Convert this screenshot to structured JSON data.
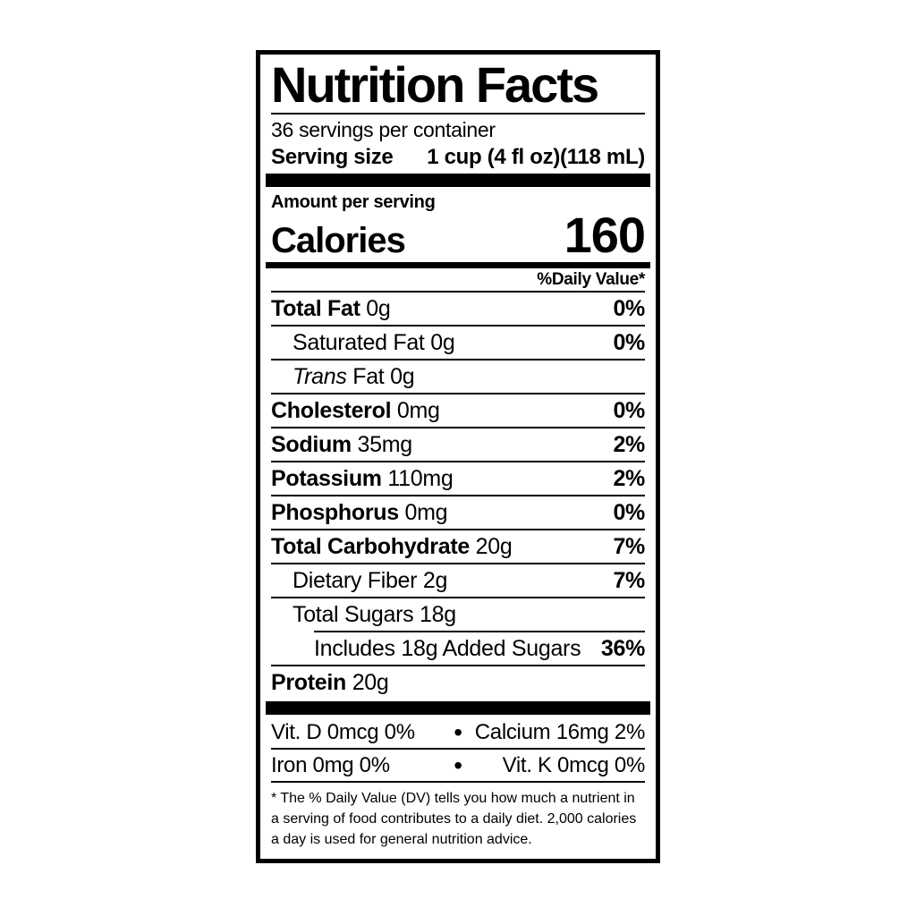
{
  "label": {
    "title": "Nutrition Facts",
    "servings_per_container": "36 servings per container",
    "serving_size": {
      "label": "Serving size",
      "value": "1 cup (4 fl oz)(118 mL)"
    },
    "amount_per_serving": "Amount per serving",
    "calories": {
      "label": "Calories",
      "value": "160"
    },
    "daily_value_header": "%Daily Value*",
    "nutrients": [
      {
        "bold": "Total Fat",
        "text": "0g",
        "dv": "0%",
        "indent": 0
      },
      {
        "text": "Saturated Fat 0g",
        "dv": "0%",
        "indent": 1
      },
      {
        "italic": "Trans",
        "text": "Fat 0g",
        "dv": "",
        "indent": 1
      },
      {
        "bold": "Cholesterol",
        "text": "0mg",
        "dv": "0%",
        "indent": 0
      },
      {
        "bold": "Sodium",
        "text": "35mg",
        "dv": "2%",
        "indent": 0
      },
      {
        "bold": "Potassium",
        "text": "110mg",
        "dv": "2%",
        "indent": 0
      },
      {
        "bold": "Phosphorus",
        "text": "0mg",
        "dv": "0%",
        "indent": 0
      },
      {
        "bold": "Total Carbohydrate",
        "text": "20g",
        "dv": "7%",
        "indent": 0
      },
      {
        "text": "Dietary Fiber 2g",
        "dv": "7%",
        "indent": 1
      },
      {
        "text": "Total Sugars 18g",
        "dv": "",
        "indent": 1,
        "rule_indent": true
      },
      {
        "text": "Includes 18g Added Sugars",
        "dv": "36%",
        "indent": 2
      },
      {
        "bold": "Protein",
        "text": "20g",
        "dv": "",
        "indent": 0,
        "last": true
      }
    ],
    "micronutrients": [
      {
        "left": "Vit. D 0mcg 0%",
        "separator": "•",
        "right": "Calcium 16mg 2%"
      },
      {
        "left": "Iron 0mg 0%",
        "separator": "•",
        "right": "Vit. K 0mcg 0%"
      }
    ],
    "footnote": "* The % Daily Value (DV) tells you how much a nutrient in a serving of food contributes to a daily diet. 2,000 calories a day is used for general nutrition advice."
  },
  "colors": {
    "ink": "#000000",
    "background": "#ffffff"
  }
}
